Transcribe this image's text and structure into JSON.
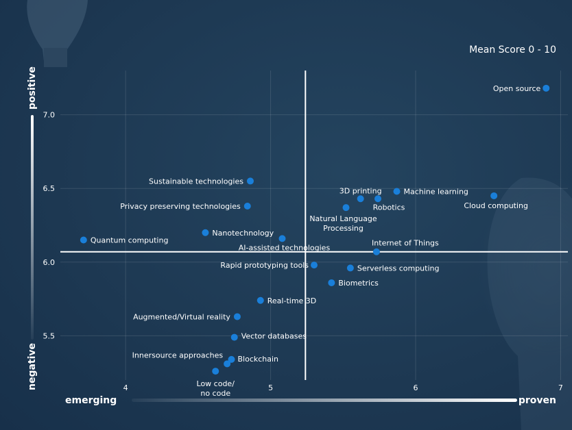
{
  "chart_data": {
    "type": "scatter",
    "title": "Mean Score 0 - 10",
    "xlabel_left": "emerging",
    "xlabel_right": "proven",
    "ylabel_top": "positive",
    "ylabel_bottom": "negative",
    "xlim": [
      3.55,
      7.05
    ],
    "ylim": [
      5.2,
      7.3
    ],
    "x_ticks": [
      4,
      5,
      6,
      7
    ],
    "y_ticks": [
      5.5,
      6.0,
      6.5,
      7.0
    ],
    "y_tick_labels": [
      "5.5",
      "6.0",
      "6.5",
      "7.0"
    ],
    "divider_x": 5.24,
    "divider_y": 6.07,
    "grid": true,
    "colors": {
      "point": "#1a7fd9",
      "background": "#1e3a55",
      "text": "#ffffff"
    },
    "points": [
      {
        "label": "Open source",
        "x": 6.9,
        "y": 7.18
      },
      {
        "label": "Sustainable technologies",
        "x": 4.86,
        "y": 6.55
      },
      {
        "label": "Machine learning",
        "x": 5.87,
        "y": 6.48
      },
      {
        "label": "Cloud computing",
        "x": 6.54,
        "y": 6.45
      },
      {
        "label": "3D printing",
        "x": 5.62,
        "y": 6.43
      },
      {
        "label": "Robotics",
        "x": 5.74,
        "y": 6.43
      },
      {
        "label": "Privacy preserving technologies",
        "x": 4.84,
        "y": 6.38
      },
      {
        "label": "Natural Language Processing",
        "x": 5.52,
        "y": 6.37
      },
      {
        "label": "Nanotechnology",
        "x": 4.55,
        "y": 6.2
      },
      {
        "label": "AI-assisted technologies",
        "x": 5.08,
        "y": 6.16
      },
      {
        "label": "Quantum computing",
        "x": 3.71,
        "y": 6.15
      },
      {
        "label": "Internet of Things",
        "x": 5.73,
        "y": 6.07
      },
      {
        "label": "Rapid prototyping tools",
        "x": 5.3,
        "y": 5.98
      },
      {
        "label": "Serverless computing",
        "x": 5.55,
        "y": 5.96
      },
      {
        "label": "Biometrics",
        "x": 5.42,
        "y": 5.86
      },
      {
        "label": "Real-time 3D",
        "x": 4.93,
        "y": 5.74
      },
      {
        "label": "Augmented/Virtual reality",
        "x": 4.77,
        "y": 5.63
      },
      {
        "label": "Vector databases",
        "x": 4.75,
        "y": 5.49
      },
      {
        "label": "Blockchain",
        "x": 4.73,
        "y": 5.34
      },
      {
        "label": "Innersource approaches",
        "x": 4.7,
        "y": 5.31
      },
      {
        "label": "Low code/ no code",
        "x": 4.62,
        "y": 5.26
      }
    ]
  }
}
